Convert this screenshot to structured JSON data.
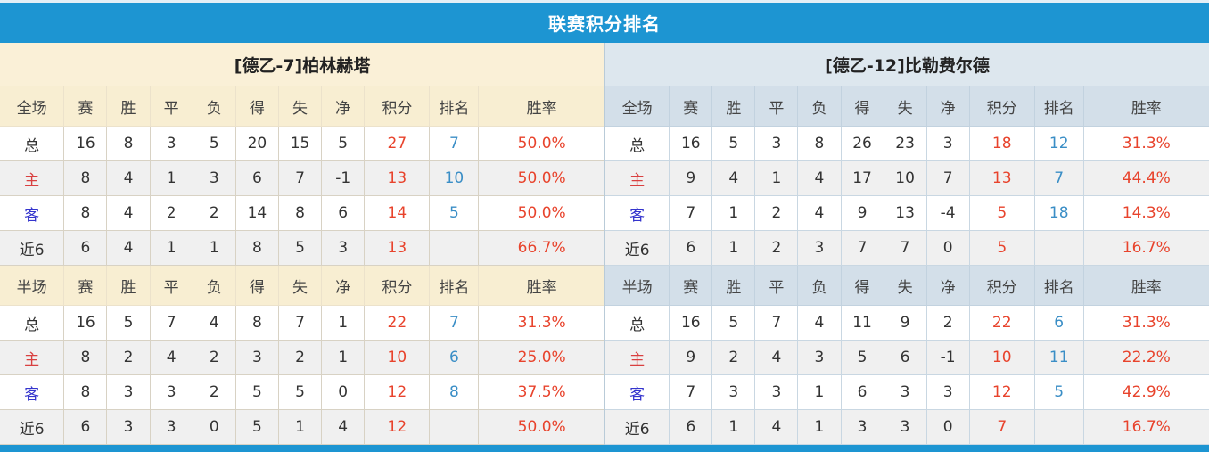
{
  "header": {
    "title": "联赛积分排名"
  },
  "colors": {
    "accent_blue": "#1d95d2",
    "top_strip": "#e3eff6",
    "left_panel_beige": "#faf0d7",
    "left_panel_header_beige": "#f8eed2",
    "right_panel_bluegray": "#dde7ee",
    "right_panel_header_bluegray": "#d3dfe9",
    "stripe_gray": "#f0f0f0",
    "points_red": "#e8432c",
    "win_rate_red": "#e8432c",
    "rank_blue": "#3a8ec6",
    "home_label_red": "#d94040",
    "away_label_blue": "#3434cd"
  },
  "column_widths_percent": [
    10.6,
    7.1,
    7.1,
    7.1,
    7.1,
    7.1,
    7.1,
    7.1,
    10.8,
    8.1,
    20.8
  ],
  "tables": [
    {
      "team": "[德乙-7]柏林赫塔",
      "sections": [
        {
          "label": "全场",
          "columns": [
            "赛",
            "胜",
            "平",
            "负",
            "得",
            "失",
            "净",
            "积分",
            "排名",
            "胜率"
          ],
          "rows": [
            {
              "label": "总",
              "type": "total",
              "values": [
                "16",
                "8",
                "3",
                "5",
                "20",
                "15",
                "5"
              ],
              "points": "27",
              "rank": "7",
              "win_rate": "50.0%"
            },
            {
              "label": "主",
              "type": "home",
              "values": [
                "8",
                "4",
                "1",
                "3",
                "6",
                "7",
                "-1"
              ],
              "points": "13",
              "rank": "10",
              "win_rate": "50.0%"
            },
            {
              "label": "客",
              "type": "away",
              "values": [
                "8",
                "4",
                "2",
                "2",
                "14",
                "8",
                "6"
              ],
              "points": "14",
              "rank": "5",
              "win_rate": "50.0%"
            },
            {
              "label": "近6",
              "type": "recent6",
              "values": [
                "6",
                "4",
                "1",
                "1",
                "8",
                "5",
                "3"
              ],
              "points": "13",
              "rank": "",
              "win_rate": "66.7%"
            }
          ]
        },
        {
          "label": "半场",
          "columns": [
            "赛",
            "胜",
            "平",
            "负",
            "得",
            "失",
            "净",
            "积分",
            "排名",
            "胜率"
          ],
          "rows": [
            {
              "label": "总",
              "type": "total",
              "values": [
                "16",
                "5",
                "7",
                "4",
                "8",
                "7",
                "1"
              ],
              "points": "22",
              "rank": "7",
              "win_rate": "31.3%"
            },
            {
              "label": "主",
              "type": "home",
              "values": [
                "8",
                "2",
                "4",
                "2",
                "3",
                "2",
                "1"
              ],
              "points": "10",
              "rank": "6",
              "win_rate": "25.0%"
            },
            {
              "label": "客",
              "type": "away",
              "values": [
                "8",
                "3",
                "3",
                "2",
                "5",
                "5",
                "0"
              ],
              "points": "12",
              "rank": "8",
              "win_rate": "37.5%"
            },
            {
              "label": "近6",
              "type": "recent6",
              "values": [
                "6",
                "3",
                "3",
                "0",
                "5",
                "1",
                "4"
              ],
              "points": "12",
              "rank": "",
              "win_rate": "50.0%"
            }
          ]
        }
      ]
    },
    {
      "team": "[德乙-12]比勒费尔德",
      "sections": [
        {
          "label": "全场",
          "columns": [
            "赛",
            "胜",
            "平",
            "负",
            "得",
            "失",
            "净",
            "积分",
            "排名",
            "胜率"
          ],
          "rows": [
            {
              "label": "总",
              "type": "total",
              "values": [
                "16",
                "5",
                "3",
                "8",
                "26",
                "23",
                "3"
              ],
              "points": "18",
              "rank": "12",
              "win_rate": "31.3%"
            },
            {
              "label": "主",
              "type": "home",
              "values": [
                "9",
                "4",
                "1",
                "4",
                "17",
                "10",
                "7"
              ],
              "points": "13",
              "rank": "7",
              "win_rate": "44.4%"
            },
            {
              "label": "客",
              "type": "away",
              "values": [
                "7",
                "1",
                "2",
                "4",
                "9",
                "13",
                "-4"
              ],
              "points": "5",
              "rank": "18",
              "win_rate": "14.3%"
            },
            {
              "label": "近6",
              "type": "recent6",
              "values": [
                "6",
                "1",
                "2",
                "3",
                "7",
                "7",
                "0"
              ],
              "points": "5",
              "rank": "",
              "win_rate": "16.7%"
            }
          ]
        },
        {
          "label": "半场",
          "columns": [
            "赛",
            "胜",
            "平",
            "负",
            "得",
            "失",
            "净",
            "积分",
            "排名",
            "胜率"
          ],
          "rows": [
            {
              "label": "总",
              "type": "total",
              "values": [
                "16",
                "5",
                "7",
                "4",
                "11",
                "9",
                "2"
              ],
              "points": "22",
              "rank": "6",
              "win_rate": "31.3%"
            },
            {
              "label": "主",
              "type": "home",
              "values": [
                "9",
                "2",
                "4",
                "3",
                "5",
                "6",
                "-1"
              ],
              "points": "10",
              "rank": "11",
              "win_rate": "22.2%"
            },
            {
              "label": "客",
              "type": "away",
              "values": [
                "7",
                "3",
                "3",
                "1",
                "6",
                "3",
                "3"
              ],
              "points": "12",
              "rank": "5",
              "win_rate": "42.9%"
            },
            {
              "label": "近6",
              "type": "recent6",
              "values": [
                "6",
                "1",
                "4",
                "1",
                "3",
                "3",
                "0"
              ],
              "points": "7",
              "rank": "",
              "win_rate": "16.7%"
            }
          ]
        }
      ]
    }
  ]
}
